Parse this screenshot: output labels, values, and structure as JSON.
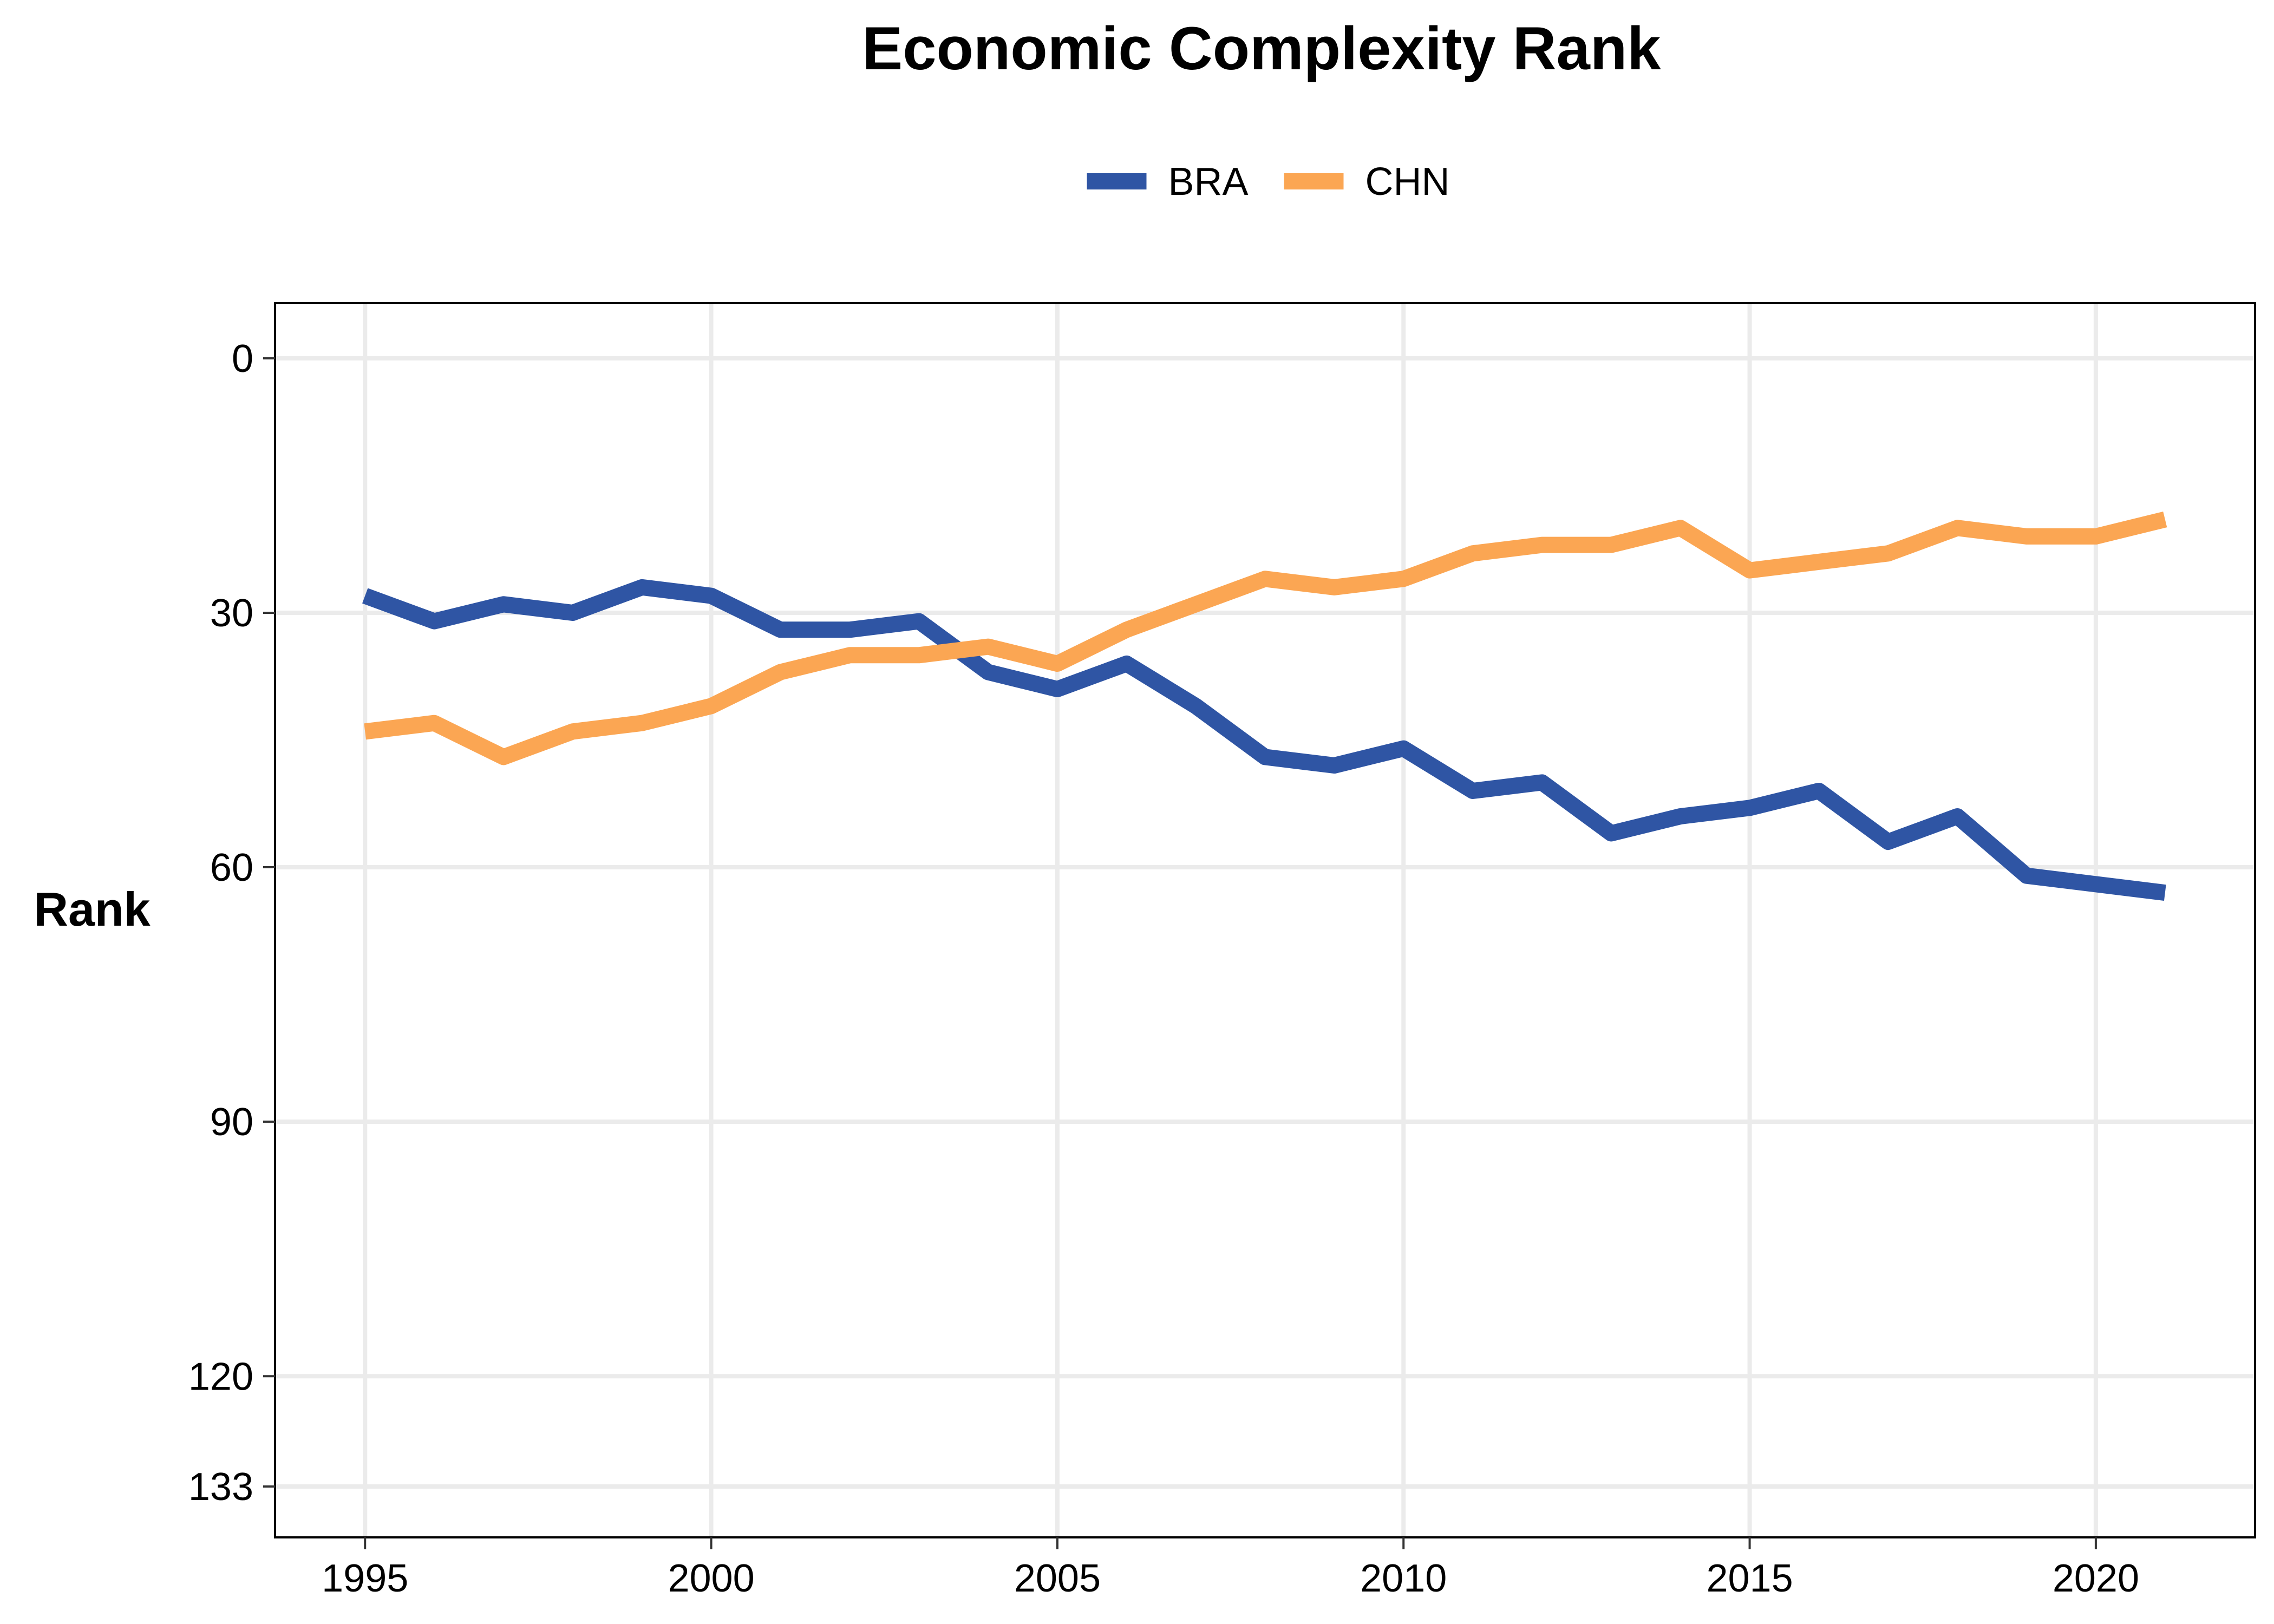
{
  "chart_data": {
    "type": "line",
    "title": "Economic Complexity Rank",
    "xlabel": "",
    "ylabel": "Rank",
    "xlim": [
      1993.7,
      2022.3
    ],
    "ylim": [
      -6.5,
      139
    ],
    "y_reversed": true,
    "x_ticks": [
      1995,
      2000,
      2005,
      2010,
      2015,
      2020
    ],
    "y_ticks": [
      0,
      30,
      60,
      90,
      120,
      133
    ],
    "grid": true,
    "legend_position": "top",
    "x": [
      1995,
      1996,
      1997,
      1998,
      1999,
      2000,
      2001,
      2002,
      2003,
      2004,
      2005,
      2006,
      2007,
      2008,
      2009,
      2010,
      2011,
      2012,
      2013,
      2014,
      2015,
      2016,
      2017,
      2018,
      2019,
      2020,
      2021
    ],
    "series": [
      {
        "name": "BRA",
        "color": "#2f55a4",
        "values": [
          28,
          31,
          29,
          30,
          27,
          28,
          32,
          32,
          31,
          37,
          39,
          36,
          41,
          47,
          48,
          46,
          51,
          50,
          56,
          54,
          53,
          51,
          57,
          54,
          61,
          62,
          63
        ]
      },
      {
        "name": "CHN",
        "color": "#fba653",
        "values": [
          44,
          43,
          47,
          44,
          43,
          41,
          37,
          35,
          35,
          34,
          36,
          32,
          29,
          26,
          27,
          26,
          23,
          22,
          22,
          20,
          25,
          24,
          23,
          20,
          21,
          21,
          19
        ]
      }
    ]
  }
}
